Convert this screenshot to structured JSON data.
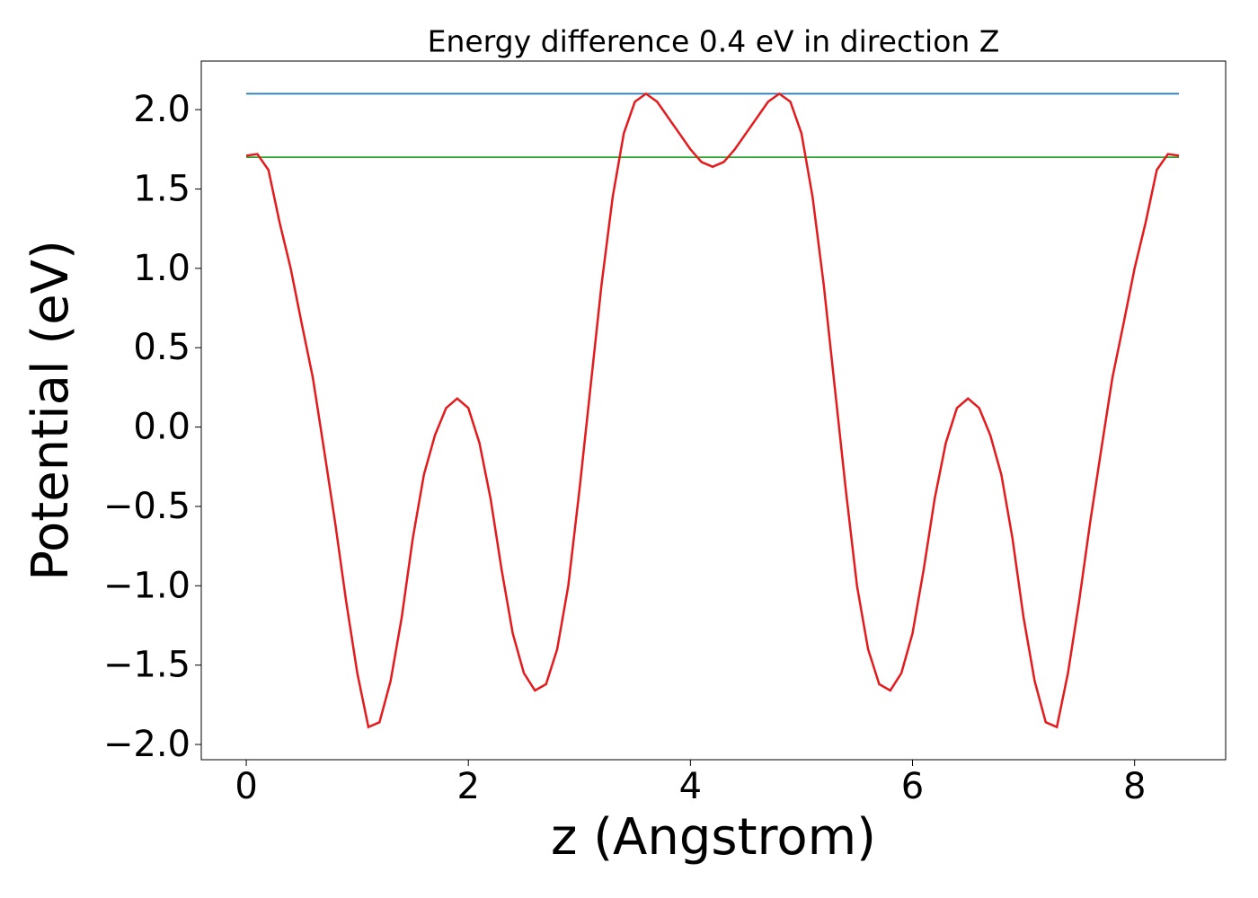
{
  "chart_data": {
    "type": "line",
    "title": "Energy difference 0.4 eV in direction Z",
    "xlabel": "z (Angstrom)",
    "ylabel": "Potential (eV)",
    "xlim": [
      -0.405,
      8.82
    ],
    "ylim": [
      -2.096,
      2.306
    ],
    "xticks": [
      0,
      2,
      4,
      6,
      8
    ],
    "yticks": [
      {
        "value": -2.0,
        "label": "−2.0"
      },
      {
        "value": -1.5,
        "label": "−1.5"
      },
      {
        "value": -1.0,
        "label": "−1.0"
      },
      {
        "value": -0.5,
        "label": "−0.5"
      },
      {
        "value": 0.0,
        "label": "0.0"
      },
      {
        "value": 0.5,
        "label": "0.5"
      },
      {
        "value": 1.0,
        "label": "1.0"
      },
      {
        "value": 1.5,
        "label": "1.5"
      },
      {
        "value": 2.0,
        "label": "2.0"
      }
    ],
    "series": [
      {
        "color": "#1f77b4",
        "x": [
          0,
          8.4
        ],
        "values": [
          2.1,
          2.1
        ]
      },
      {
        "color": "#2ca02c",
        "x": [
          0,
          8.4
        ],
        "values": [
          1.7,
          1.7
        ]
      },
      {
        "color": "#e41a1c",
        "x": [
          0,
          0.1,
          0.2,
          0.3,
          0.4,
          0.5,
          0.6,
          0.7,
          0.8,
          0.9,
          1.0,
          1.1,
          1.2,
          1.3,
          1.4,
          1.5,
          1.6,
          1.7,
          1.8,
          1.9,
          2.0,
          2.1,
          2.2,
          2.3,
          2.4,
          2.5,
          2.6,
          2.7,
          2.8,
          2.9,
          3.0,
          3.1,
          3.2,
          3.3,
          3.4,
          3.5,
          3.6,
          3.7,
          3.8,
          3.9,
          4.0,
          4.1,
          4.2,
          4.3,
          4.4,
          4.5,
          4.6,
          4.7,
          4.8,
          4.9,
          5.0,
          5.1,
          5.2,
          5.3,
          5.4,
          5.5,
          5.6,
          5.7,
          5.8,
          5.9,
          6.0,
          6.1,
          6.2,
          6.3,
          6.4,
          6.5,
          6.6,
          6.7,
          6.8,
          6.9,
          7.0,
          7.1,
          7.2,
          7.3,
          7.4,
          7.5,
          7.6,
          7.7,
          7.8,
          7.9,
          8.0,
          8.1,
          8.2,
          8.3,
          8.4
        ],
        "values": [
          1.71,
          1.72,
          1.62,
          1.29,
          1.0,
          0.65,
          0.31,
          -0.14,
          -0.6,
          -1.1,
          -1.55,
          -1.89,
          -1.86,
          -1.6,
          -1.2,
          -0.7,
          -0.3,
          -0.05,
          0.12,
          0.18,
          0.12,
          -0.1,
          -0.45,
          -0.9,
          -1.3,
          -1.55,
          -1.66,
          -1.62,
          -1.4,
          -1.0,
          -0.4,
          0.25,
          0.9,
          1.45,
          1.85,
          2.05,
          2.1,
          2.05,
          1.95,
          1.85,
          1.75,
          1.67,
          1.64,
          1.67,
          1.75,
          1.85,
          1.95,
          2.05,
          2.1,
          2.05,
          1.85,
          1.45,
          0.9,
          0.25,
          -0.4,
          -1.0,
          -1.4,
          -1.62,
          -1.66,
          -1.55,
          -1.3,
          -0.9,
          -0.45,
          -0.1,
          0.12,
          0.18,
          0.12,
          -0.05,
          -0.3,
          -0.7,
          -1.2,
          -1.6,
          -1.86,
          -1.89,
          -1.55,
          -1.1,
          -0.6,
          -0.14,
          0.31,
          0.65,
          1.0,
          1.29,
          1.62,
          1.72,
          1.71
        ]
      }
    ]
  }
}
